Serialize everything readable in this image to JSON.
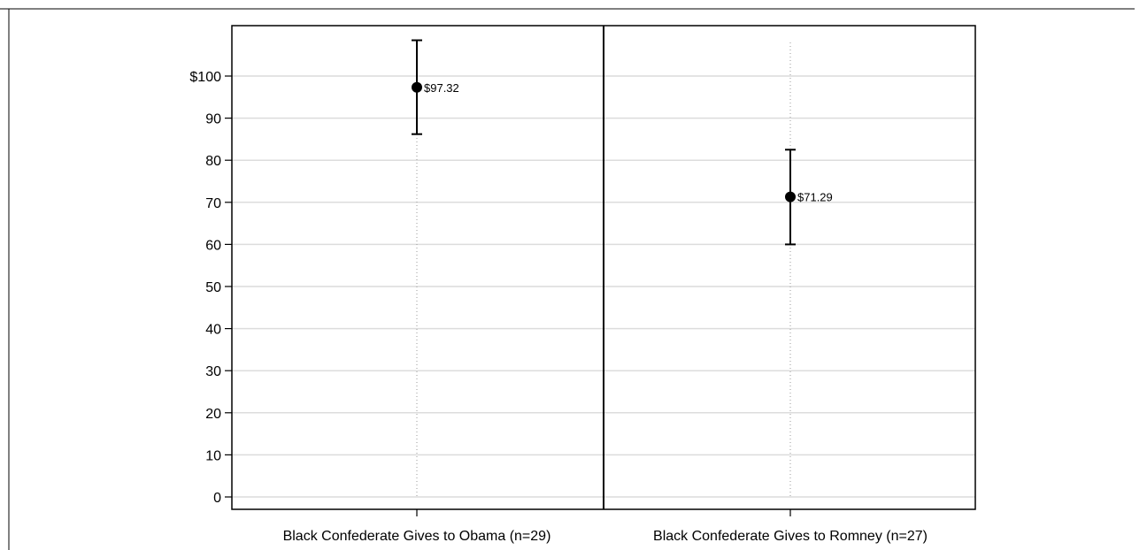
{
  "chart_data": {
    "type": "scatter",
    "title": "",
    "xlabel": "",
    "ylabel": "",
    "ylim": [
      0,
      100
    ],
    "grid": true,
    "legend": "none",
    "y_ticks": [
      0,
      10,
      20,
      30,
      40,
      50,
      60,
      70,
      80,
      90,
      100
    ],
    "y_tick_labels": [
      "0",
      "10",
      "20",
      "30",
      "40",
      "50",
      "60",
      "70",
      "80",
      "90",
      "$100"
    ],
    "categories": [
      "Black Confederate Gives to Obama (n=29)",
      "Black Confederate Gives to Romney (n=27)"
    ],
    "points": [
      {
        "category": "Black Confederate Gives to Obama (n=29)",
        "value": 97.32,
        "lower": 86.2,
        "upper": 108.5,
        "label": "$97.32"
      },
      {
        "category": "Black Confederate Gives to Romney (n=27)",
        "value": 71.29,
        "lower": 60.0,
        "upper": 82.5,
        "label": "$71.29"
      }
    ],
    "colors": {
      "marker": "#000000",
      "gridline": "#dcdcdc",
      "frame": "#000000"
    }
  }
}
